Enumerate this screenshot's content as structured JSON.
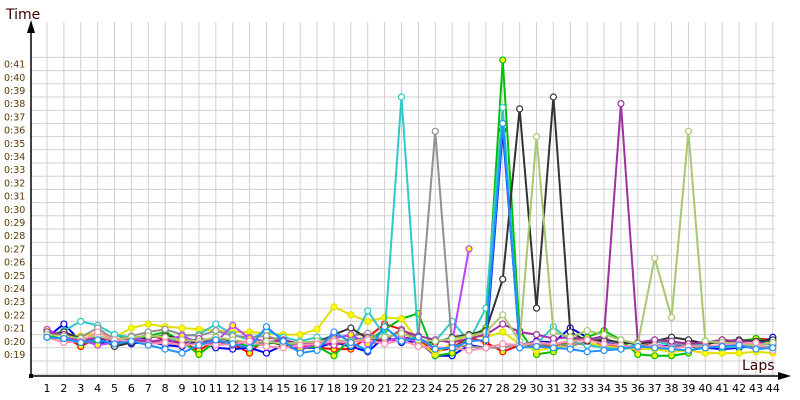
{
  "chart_data": {
    "type": "line",
    "ylabel": "Time",
    "xlabel": "Laps",
    "x": [
      1,
      2,
      3,
      4,
      5,
      6,
      7,
      8,
      9,
      10,
      11,
      12,
      13,
      14,
      15,
      16,
      17,
      18,
      19,
      20,
      21,
      22,
      23,
      24,
      25,
      26,
      27,
      28,
      29,
      30,
      31,
      32,
      33,
      34,
      35,
      36,
      37,
      38,
      39,
      40,
      41,
      42,
      43,
      44
    ],
    "yticks": [
      "0:19",
      "0:20",
      "0:21",
      "0:22",
      "0:23",
      "0:24",
      "0:25",
      "0:26",
      "0:27",
      "0:28",
      "0:29",
      "0:30",
      "0:31",
      "0:32",
      "0:33",
      "0:34",
      "0:35",
      "0:36",
      "0:37",
      "0:38",
      "0:39",
      "0:40",
      "0:41"
    ],
    "ylim_seconds": [
      18,
      42
    ],
    "grid": true,
    "series": [
      {
        "color": "#ff0000",
        "marker_fill": "#ffff00",
        "values": [
          21.3,
          20.9,
          20.1,
          20.8,
          20.5,
          20.6,
          21.0,
          20.6,
          20.4,
          19.8,
          20.6,
          20.3,
          19.6,
          20.8,
          20.6,
          20.2,
          20.0,
          19.9,
          19.9,
          20.8,
          21.8,
          21.4,
          20.6,
          19.7,
          20.0,
          20.8,
          20.4,
          19.7,
          20.2,
          20.1,
          20.1,
          20.4,
          20.2,
          20.3,
          20.1,
          20.0,
          20.5,
          20.3,
          20.4,
          20.2,
          20.6,
          20.3,
          20.7,
          20.6
        ]
      },
      {
        "color": "#0000ee",
        "marker_fill": "#ffffff",
        "values": [
          20.8,
          21.8,
          20.5,
          20.3,
          20.5,
          20.3,
          20.5,
          20.2,
          20.1,
          20.5,
          20.0,
          19.9,
          20.0,
          19.6,
          20.2,
          20.0,
          20.0,
          20.4,
          20.1,
          19.7,
          20.8,
          20.4,
          20.5,
          19.4,
          19.4,
          20.2,
          20.0,
          36.5,
          20.2,
          20.5,
          20.4,
          21.5,
          20.8,
          20.4,
          20.2,
          20.0,
          20.2,
          20.1,
          20.1,
          20.0,
          19.9,
          20.0,
          20.2,
          20.8
        ]
      },
      {
        "color": "#00c000",
        "marker_fill": "#ffff00",
        "values": [
          21.0,
          20.6,
          20.4,
          20.4,
          21.0,
          20.6,
          20.9,
          21.2,
          20.5,
          19.5,
          20.5,
          20.4,
          20.1,
          20.3,
          20.5,
          20.0,
          20.1,
          19.4,
          20.7,
          20.5,
          21.4,
          22.2,
          22.6,
          19.4,
          19.6,
          20.8,
          21.5,
          41.8,
          21.3,
          19.5,
          19.7,
          20.6,
          20.8,
          21.3,
          20.6,
          19.5,
          19.4,
          19.4,
          19.6,
          20.4,
          20.6,
          20.5,
          20.7,
          20.4
        ]
      },
      {
        "color": "#e0e000",
        "marker_fill": "#ffff00",
        "values": [
          21.1,
          21.0,
          20.9,
          21.1,
          20.8,
          21.5,
          21.8,
          21.6,
          21.5,
          21.4,
          21.3,
          21.2,
          21.2,
          21.1,
          21.0,
          21.0,
          21.4,
          23.1,
          22.5,
          22.0,
          22.3,
          22.2,
          20.5,
          19.5,
          20.4,
          21.0,
          20.8,
          21.2,
          20.3,
          19.8,
          20.0,
          20.2,
          20.4,
          20.1,
          20.0,
          19.9,
          19.9,
          19.7,
          19.8,
          19.6,
          19.6,
          19.6,
          19.7,
          19.6
        ]
      },
      {
        "color": "#30c8c8",
        "marker_fill": "#ffffff",
        "values": [
          20.9,
          21.3,
          22.0,
          21.7,
          21.0,
          20.8,
          20.5,
          20.3,
          20.9,
          21.0,
          21.8,
          21.0,
          20.6,
          21.3,
          20.8,
          20.5,
          20.8,
          20.5,
          20.2,
          22.8,
          20.9,
          39.0,
          20.5,
          20.5,
          22.0,
          20.5,
          23.0,
          38.2,
          20.2,
          20.3,
          21.6,
          20.5,
          20.2,
          20.0,
          19.9,
          20.3,
          20.5,
          20.2,
          20.3,
          20.2,
          20.0,
          20.1,
          20.2,
          20.3
        ]
      },
      {
        "color": "#909090",
        "marker_fill": "#ffffff",
        "values": [
          21.2,
          21.0,
          20.8,
          21.5,
          20.6,
          20.9,
          21.2,
          21.4,
          21.0,
          20.9,
          21.3,
          20.9,
          20.8,
          20.9,
          20.5,
          20.2,
          20.5,
          20.8,
          20.9,
          21.1,
          20.6,
          21.4,
          20.7,
          36.4,
          20.2,
          20.1,
          20.0,
          20.0,
          20.3,
          20.2,
          20.3,
          20.1,
          20.5,
          20.8,
          20.2,
          20.0,
          20.6,
          20.4,
          20.1,
          20.5,
          20.3,
          20.4,
          20.0,
          20.1
        ]
      },
      {
        "color": "#333333",
        "marker_fill": "#ffffff",
        "values": [
          20.9,
          21.2,
          20.7,
          20.8,
          20.1,
          20.4,
          20.8,
          20.9,
          20.7,
          20.3,
          20.8,
          20.5,
          20.4,
          20.5,
          20.2,
          19.8,
          20.4,
          21.0,
          21.5,
          20.7,
          20.5,
          20.8,
          20.6,
          20.4,
          20.8,
          21.0,
          21.3,
          25.2,
          38.1,
          23.0,
          39.0,
          21.2,
          20.5,
          20.6,
          20.4,
          20.3,
          20.5,
          20.8,
          20.6,
          20.3,
          20.5,
          20.6,
          20.5,
          20.6
        ]
      },
      {
        "color": "#c040ff",
        "marker_fill": "#ffff00",
        "values": [
          21.4,
          20.8,
          20.6,
          20.2,
          20.4,
          20.8,
          20.5,
          20.6,
          20.9,
          20.4,
          20.4,
          21.7,
          20.7,
          20.5,
          20.4,
          19.9,
          20.3,
          20.7,
          21.0,
          20.3,
          20.5,
          20.8,
          20.4,
          20.6,
          20.4,
          27.5,
          null,
          null,
          null,
          null,
          null,
          null,
          null,
          null,
          null,
          null,
          null,
          null,
          null,
          null,
          null,
          null,
          null,
          null
        ]
      },
      {
        "color": "#a030a0",
        "marker_fill": "#ffffff",
        "values": [
          21.2,
          21.0,
          20.5,
          20.8,
          20.5,
          20.6,
          20.4,
          20.6,
          20.3,
          20.7,
          20.5,
          20.2,
          20.5,
          20.4,
          20.6,
          20.3,
          20.4,
          20.2,
          20.5,
          20.8,
          20.6,
          21.3,
          20.9,
          20.6,
          20.4,
          20.7,
          21.0,
          21.8,
          21.2,
          21.0,
          20.7,
          20.8,
          20.6,
          20.9,
          38.5,
          20.4,
          20.6,
          20.5,
          20.3,
          20.4,
          20.6,
          20.5,
          20.4,
          20.3
        ]
      },
      {
        "color": "#a8c870",
        "marker_fill": "#ffffff",
        "values": [
          21.0,
          20.9,
          20.7,
          20.9,
          20.6,
          20.8,
          20.9,
          20.8,
          20.6,
          20.5,
          20.8,
          20.6,
          20.4,
          20.5,
          20.3,
          20.4,
          20.5,
          20.6,
          20.5,
          20.7,
          20.8,
          21.1,
          20.6,
          20.5,
          20.7,
          20.9,
          21.2,
          22.5,
          20.5,
          36.0,
          21.2,
          20.8,
          21.3,
          21.0,
          20.6,
          20.3,
          26.8,
          22.3,
          36.4,
          20.5,
          20.4,
          20.3,
          20.2,
          20.4
        ]
      },
      {
        "color": "#ff90b0",
        "marker_fill": "#ffffff",
        "values": [
          20.8,
          20.4,
          20.5,
          21.2,
          20.6,
          20.5,
          20.3,
          20.4,
          20.2,
          20.3,
          20.2,
          20.3,
          20.5,
          20.1,
          20.0,
          20.2,
          20.3,
          20.5,
          20.4,
          20.6,
          20.3,
          20.6,
          20.1,
          20.0,
          20.0,
          19.8,
          20.0,
          20.3,
          20.2,
          20.4,
          20.3,
          20.5,
          20.6,
          20.3,
          20.2,
          20.0,
          20.2,
          20.0,
          20.1,
          20.1,
          20.2,
          20.3,
          20.4,
          19.8
        ]
      },
      {
        "color": "#1e90ff",
        "marker_fill": "#ffffff",
        "values": [
          20.8,
          20.7,
          20.4,
          20.6,
          20.3,
          20.5,
          20.2,
          19.9,
          19.6,
          20.2,
          20.6,
          20.3,
          20.0,
          21.6,
          20.5,
          19.6,
          19.8,
          21.2,
          20.4,
          19.8,
          21.6,
          20.5,
          20.8,
          19.9,
          20.0,
          20.5,
          20.6,
          37.0,
          20.0,
          20.1,
          20.0,
          19.9,
          19.7,
          19.8,
          19.9,
          20.1,
          20.0,
          19.9,
          19.8,
          20.0,
          20.1,
          20.2,
          19.9,
          20.0
        ]
      }
    ]
  }
}
